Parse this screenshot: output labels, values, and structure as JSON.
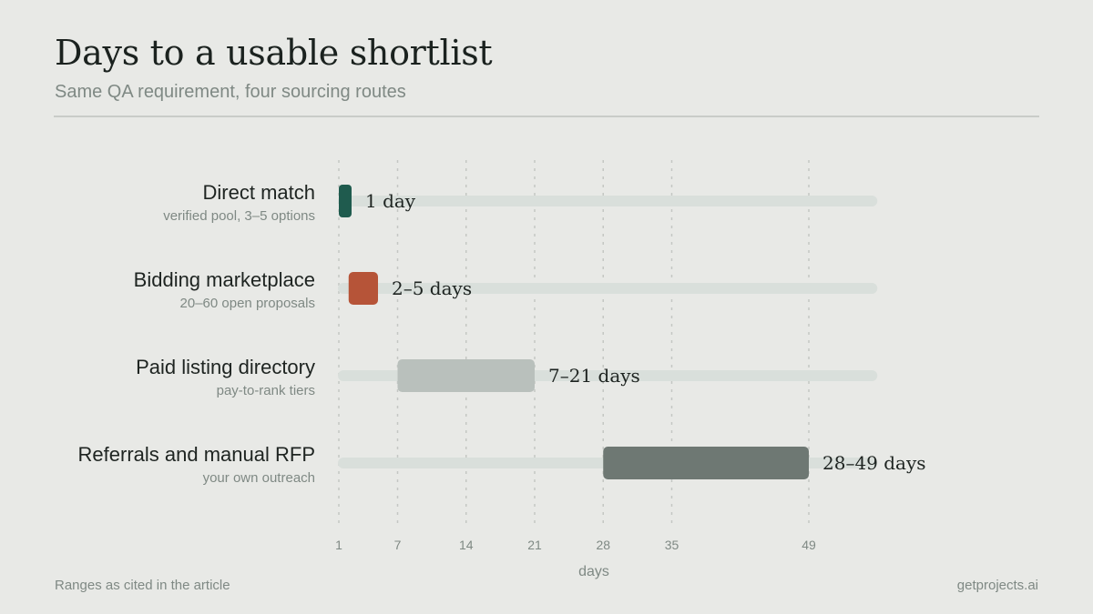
{
  "header": {
    "title": "Days to a usable shortlist",
    "subtitle": "Same QA requirement, four sourcing routes"
  },
  "footer": {
    "note": "Ranges as cited in the article",
    "source": "getprojects.ai"
  },
  "chart_data": {
    "type": "bar",
    "orientation": "horizontal-range",
    "categories": [
      "Direct match",
      "Bidding marketplace",
      "Paid listing directory",
      "Referrals and manual RFP"
    ],
    "sublabels": [
      "verified pool, 3–5 options",
      "20–60 open proposals",
      "pay-to-rank tiers",
      "your own outreach"
    ],
    "ranges": [
      [
        1,
        1
      ],
      [
        2,
        5
      ],
      [
        7,
        21
      ],
      [
        28,
        49
      ]
    ],
    "value_labels": [
      "1 day",
      "2–5 days",
      "7–21 days",
      "28–49 days"
    ],
    "xlabel": "days",
    "xticks": [
      1,
      7,
      14,
      21,
      28,
      35,
      49
    ],
    "xlim": [
      1,
      56
    ],
    "grid": true,
    "colors": {
      "bars": [
        "#1f5b4e",
        "#b65438",
        "#b9c0bc",
        "#6e7873"
      ],
      "track": "#d9dfdb",
      "grid": "#c4c7c3",
      "tick_text": "#7f8984",
      "label_text": "#1e2421",
      "sublabel_text": "#7f8984"
    }
  }
}
